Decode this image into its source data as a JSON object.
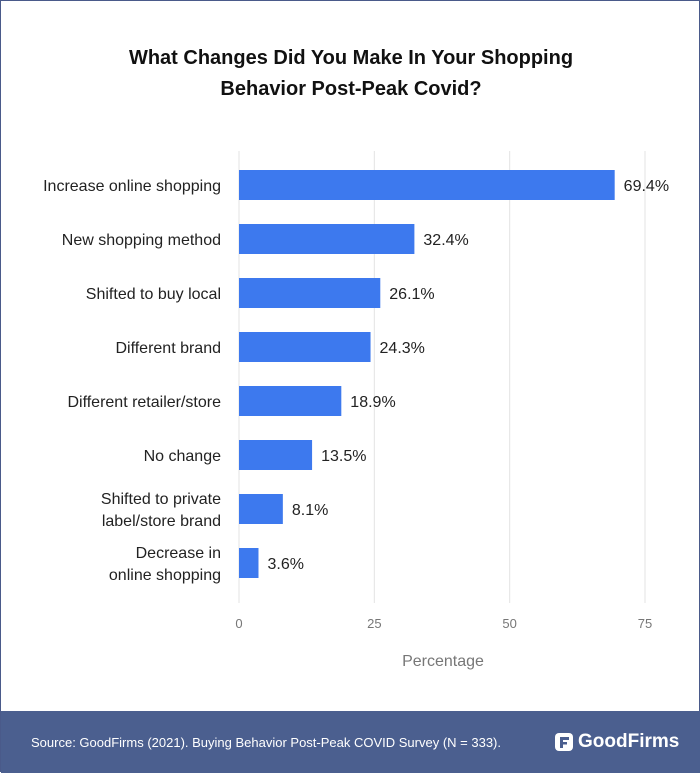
{
  "chart_data": {
    "type": "bar",
    "orientation": "horizontal",
    "title": "What Changes Did You Make In Your Shopping Behavior Post-Peak Covid?",
    "title_lines": [
      "What Changes Did You Make In Your Shopping",
      "Behavior Post-Peak Covid?"
    ],
    "xlabel": "Percentage",
    "ylabel": "",
    "categories": [
      [
        "Increase online shopping"
      ],
      [
        "New shopping method"
      ],
      [
        "Shifted to buy local"
      ],
      [
        "Different brand"
      ],
      [
        "Different retailer/store"
      ],
      [
        "No change"
      ],
      [
        "Shifted to private",
        "label/store brand"
      ],
      [
        "Decrease in",
        "online shopping"
      ]
    ],
    "values": [
      69.4,
      32.4,
      26.1,
      24.3,
      18.9,
      13.5,
      8.1,
      3.6
    ],
    "value_labels": [
      "69.4%",
      "32.4%",
      "26.1%",
      "24.3%",
      "18.9%",
      "13.5%",
      "8.1%",
      "3.6%"
    ],
    "xlim": [
      0,
      75
    ],
    "xticks": [
      0,
      25,
      50,
      75
    ],
    "grid": true,
    "bar_color": "#3d79ee"
  },
  "footer": {
    "source": "Source: GoodFirms (2021). Buying Behavior Post-Peak COVID Survey (N = 333).",
    "brand": "GoodFirms",
    "bg_color": "#4b5f8f"
  }
}
